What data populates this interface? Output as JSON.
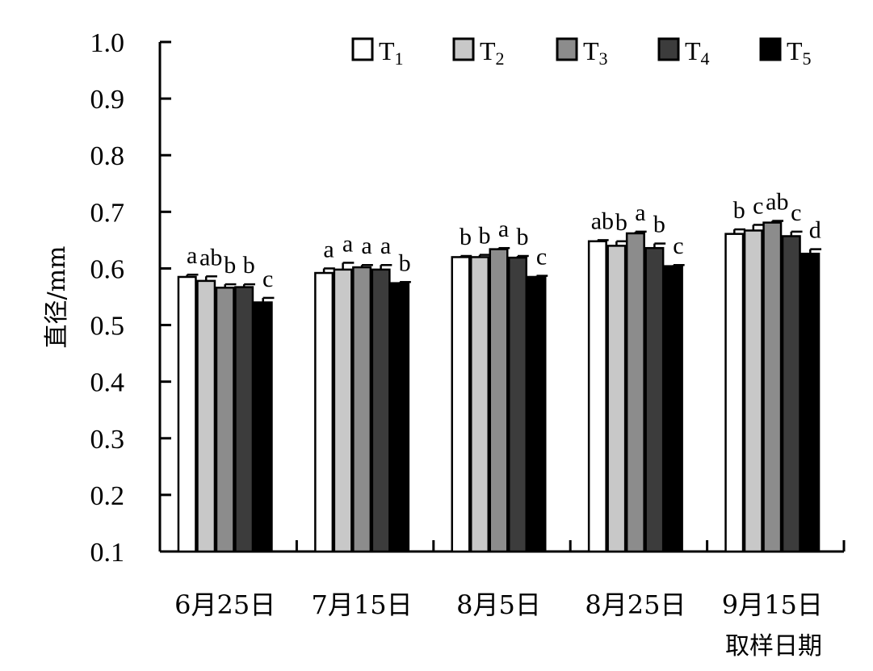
{
  "chart_data": {
    "type": "bar",
    "ylabel": "直径/mm",
    "xlabel": "取样日期",
    "ylim": [
      0.1,
      1.0
    ],
    "yticks": [
      "0.1",
      "0.2",
      "0.3",
      "0.4",
      "0.5",
      "0.6",
      "0.7",
      "0.8",
      "0.9",
      "1.0"
    ],
    "categories": [
      "6月25日",
      "7月15日",
      "8月5日",
      "8月25日",
      "9月15日"
    ],
    "grid": false,
    "legend_position": "top",
    "series": [
      {
        "name": "T",
        "sub": "1",
        "color": "#ffffff",
        "values": [
          0.585,
          0.592,
          0.62,
          0.648,
          0.661
        ],
        "errors": [
          0.004,
          0.008,
          0.002,
          0.002,
          0.008
        ],
        "labels": [
          "a",
          "a",
          "b",
          "ab",
          "b"
        ]
      },
      {
        "name": "T",
        "sub": "2",
        "color": "#c8c8c8",
        "values": [
          0.578,
          0.598,
          0.62,
          0.64,
          0.667
        ],
        "errors": [
          0.008,
          0.012,
          0.004,
          0.008,
          0.01
        ],
        "labels": [
          "ab",
          "a",
          "b",
          "b",
          "c"
        ]
      },
      {
        "name": "T",
        "sub": "3",
        "color": "#8c8c8c",
        "values": [
          0.566,
          0.602,
          0.634,
          0.662,
          0.681
        ],
        "errors": [
          0.006,
          0.004,
          0.002,
          0.003,
          0.003
        ],
        "labels": [
          "b",
          "a",
          "a",
          "a",
          "ab"
        ]
      },
      {
        "name": "T",
        "sub": "4",
        "color": "#3c3c3c",
        "values": [
          0.567,
          0.598,
          0.619,
          0.636,
          0.657
        ],
        "errors": [
          0.005,
          0.008,
          0.003,
          0.008,
          0.008
        ],
        "labels": [
          "b",
          "a",
          "b",
          "b",
          "c"
        ]
      },
      {
        "name": "T",
        "sub": "5",
        "color": "#000000",
        "values": [
          0.54,
          0.574,
          0.585,
          0.604,
          0.626
        ],
        "errors": [
          0.008,
          0.002,
          0.002,
          0.002,
          0.008
        ],
        "labels": [
          "c",
          "b",
          "c",
          "c",
          "d"
        ]
      }
    ]
  }
}
